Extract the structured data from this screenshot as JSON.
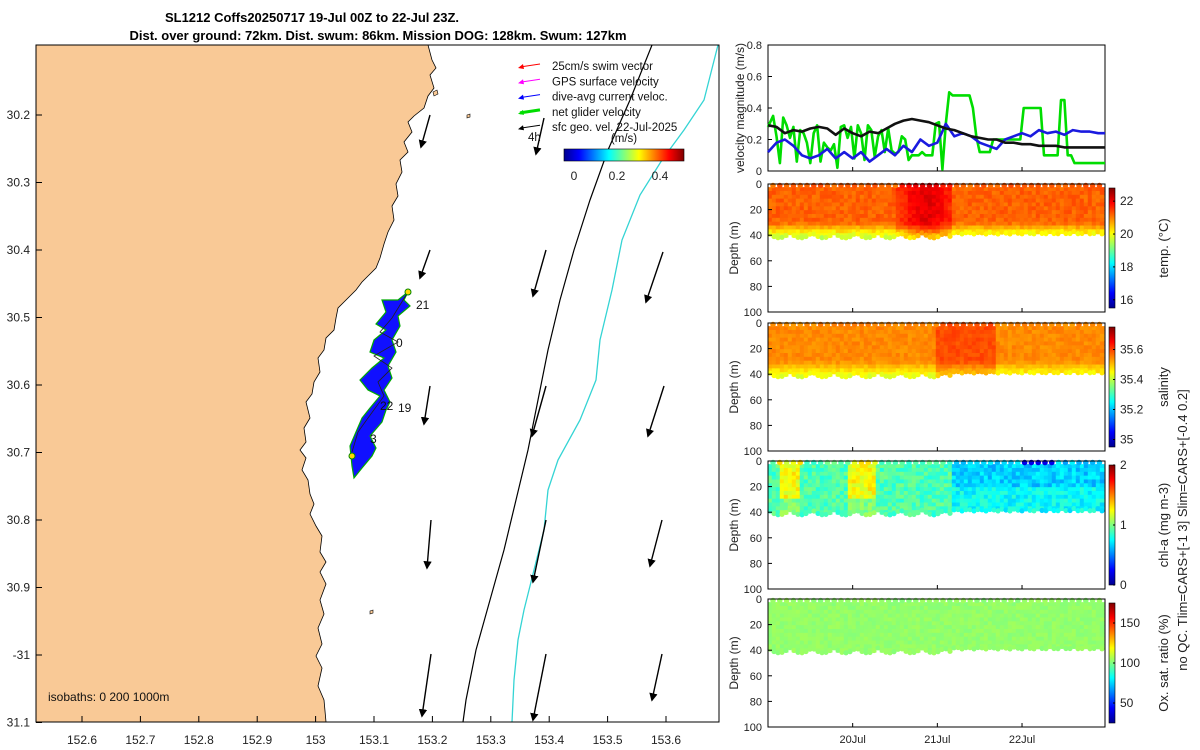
{
  "title": {
    "line1": "SL1212 Coffs20250717 19-Jul 00Z to 22-Jul 23Z.",
    "line2": "Dist. over ground: 72km. Dist. swum: 86km. Mission DOG: 128km. Swum: 127km"
  },
  "map": {
    "lon_ticks": [
      "152.6",
      "152.7",
      "152.8",
      "152.9",
      "153",
      "153.1",
      "153.2",
      "153.3",
      "153.4",
      "153.5",
      "153.6"
    ],
    "lat_ticks": [
      "30.2",
      "30.3",
      "30.4",
      "30.5",
      "30.6",
      "30.7",
      "30.8",
      "30.9",
      "-31",
      "31.1"
    ],
    "isobaths_label": "isobaths: 0   200   1000m",
    "track_labels": [
      "21",
      "0",
      "22",
      "19",
      "3"
    ],
    "legend": [
      {
        "label": "25cm/s swim vector",
        "color": "#ff0000"
      },
      {
        "label": "GPS surface velocity",
        "color": "#ff00ff"
      },
      {
        "label": "dive-avg current veloc.",
        "color": "#0000ff"
      },
      {
        "label": "net glider velocity",
        "color": "#00dd00"
      },
      {
        "label": "sfc geo. vel. 22-Jul-2025",
        "color": "#000000"
      }
    ],
    "legend_note": "4h",
    "colorbar_title": "(m/s)",
    "colorbar_ticks": [
      "0",
      "0.2",
      "0.4"
    ],
    "land_color": "#f9c996"
  },
  "chart_data": [
    {
      "type": "line",
      "title": "",
      "ylabel": "velocity magnitude (m/s)",
      "ylim": [
        0,
        0.8
      ],
      "yticks": [
        "0",
        "0.2",
        "0.4",
        "0.6",
        "0.8"
      ],
      "x_unit": "day of July 2025",
      "xlim": [
        19.0,
        22.98
      ],
      "series": [
        {
          "name": "net glider velocity",
          "color": "#00dd00",
          "x": [
            19.0,
            19.06,
            19.1,
            19.14,
            19.18,
            19.22,
            19.26,
            19.3,
            19.34,
            19.38,
            19.42,
            19.46,
            19.5,
            19.54,
            19.58,
            19.62,
            19.66,
            19.7,
            19.74,
            19.78,
            19.82,
            19.86,
            19.9,
            19.94,
            19.98,
            20.02,
            20.06,
            20.1,
            20.14,
            20.18,
            20.22,
            20.26,
            20.3,
            20.34,
            20.38,
            20.42,
            20.46,
            20.5,
            20.54,
            20.58,
            20.62,
            20.66,
            20.7,
            20.74,
            20.78,
            20.82,
            20.86,
            20.9,
            20.94,
            20.98,
            21.02,
            21.06,
            21.1,
            21.14,
            21.18,
            21.22,
            21.26,
            21.3,
            21.34,
            21.38,
            21.42,
            21.46,
            21.5,
            21.54,
            21.58,
            21.62,
            21.66,
            21.7,
            21.74,
            21.78,
            21.82,
            21.86,
            21.9,
            21.94,
            21.98,
            22.02,
            22.06,
            22.1,
            22.14,
            22.18,
            22.22,
            22.26,
            22.3,
            22.34,
            22.38,
            22.42,
            22.46,
            22.5,
            22.54,
            22.58,
            22.62,
            22.66,
            22.7,
            22.74,
            22.78,
            22.82,
            22.86,
            22.9,
            22.94,
            22.98
          ],
          "y": [
            0.28,
            0.35,
            0.22,
            0.05,
            0.34,
            0.29,
            0.21,
            0.28,
            0.06,
            0.26,
            0.24,
            0.18,
            0.05,
            0.24,
            0.29,
            0.06,
            0.18,
            0.15,
            0.13,
            0.17,
            0.02,
            0.28,
            0.29,
            0.21,
            0.28,
            0.08,
            0.29,
            0.24,
            0.07,
            0.29,
            0.26,
            0.09,
            0.22,
            0.26,
            0.12,
            0.27,
            0.13,
            0.11,
            0.12,
            0.22,
            0.2,
            0.07,
            0.1,
            0.1,
            0.1,
            0.12,
            0.1,
            0.1,
            0.1,
            0.3,
            0.31,
            0.01,
            0.3,
            0.5,
            0.48,
            0.48,
            0.48,
            0.48,
            0.48,
            0.48,
            0.4,
            0.22,
            0.12,
            0.12,
            0.12,
            0.12,
            0.2,
            0.2,
            0.2,
            0.2,
            0.2,
            0.2,
            0.2,
            0.2,
            0.2,
            0.4,
            0.4,
            0.4,
            0.4,
            0.4,
            0.4,
            0.1,
            0.1,
            0.1,
            0.1,
            0.1,
            0.45,
            0.45,
            0.1,
            0.1,
            0.05,
            0.05,
            0.05,
            0.05,
            0.05,
            0.05,
            0.05,
            0.05,
            0.05,
            0.05
          ]
        },
        {
          "name": "dive-avg current veloc.",
          "color": "#1a1adf",
          "x": [
            19.0,
            19.1,
            19.2,
            19.3,
            19.4,
            19.5,
            19.6,
            19.7,
            19.8,
            19.9,
            20.0,
            20.1,
            20.2,
            20.3,
            20.4,
            20.5,
            20.6,
            20.7,
            20.8,
            20.9,
            21.0,
            21.1,
            21.2,
            21.3,
            21.4,
            21.5,
            21.6,
            21.7,
            21.8,
            21.9,
            22.0,
            22.1,
            22.2,
            22.3,
            22.4,
            22.5,
            22.6,
            22.7,
            22.8,
            22.9,
            22.98
          ],
          "y": [
            0.12,
            0.18,
            0.2,
            0.16,
            0.1,
            0.08,
            0.1,
            0.14,
            0.08,
            0.12,
            0.08,
            0.12,
            0.06,
            0.1,
            0.14,
            0.1,
            0.16,
            0.12,
            0.2,
            0.16,
            0.18,
            0.3,
            0.22,
            0.24,
            0.22,
            0.18,
            0.16,
            0.14,
            0.2,
            0.22,
            0.24,
            0.22,
            0.26,
            0.24,
            0.25,
            0.23,
            0.26,
            0.25,
            0.25,
            0.24,
            0.24
          ]
        },
        {
          "name": "sfc geo. vel.",
          "color": "#111111",
          "x": [
            19.0,
            19.1,
            19.2,
            19.3,
            19.4,
            19.5,
            19.6,
            19.7,
            19.8,
            19.9,
            20.0,
            20.1,
            20.2,
            20.3,
            20.4,
            20.5,
            20.6,
            20.7,
            20.8,
            20.9,
            21.0,
            21.1,
            21.2,
            21.3,
            21.4,
            21.5,
            21.6,
            21.7,
            21.8,
            21.9,
            22.0,
            22.1,
            22.2,
            22.3,
            22.4,
            22.5,
            22.6,
            22.7,
            22.8,
            22.9,
            22.98
          ],
          "y": [
            0.29,
            0.28,
            0.24,
            0.26,
            0.25,
            0.27,
            0.28,
            0.27,
            0.23,
            0.27,
            0.24,
            0.22,
            0.25,
            0.24,
            0.27,
            0.3,
            0.32,
            0.33,
            0.32,
            0.31,
            0.29,
            0.27,
            0.26,
            0.24,
            0.22,
            0.21,
            0.2,
            0.2,
            0.18,
            0.18,
            0.17,
            0.17,
            0.16,
            0.16,
            0.16,
            0.15,
            0.15,
            0.15,
            0.15,
            0.15,
            0.15
          ]
        }
      ]
    },
    {
      "type": "heatmap",
      "name": "temperature section",
      "ylabel": "Depth (m)",
      "colorbar_label": "temp. (°C)",
      "ylim": [
        0,
        100
      ],
      "yticks": [
        "0",
        "20",
        "40",
        "60",
        "80",
        "100"
      ],
      "clim": [
        15.5,
        22.8
      ],
      "cticks": [
        "16",
        "18",
        "20",
        "22"
      ],
      "xticks": [
        "20Jul",
        "21Jul",
        "22Jul"
      ],
      "surface_value": 21.6,
      "bottom_depth_m": [
        38,
        42
      ]
    },
    {
      "type": "heatmap",
      "name": "salinity section",
      "ylabel": "Depth (m)",
      "colorbar_label": "salinity",
      "ylim": [
        0,
        100
      ],
      "yticks": [
        "0",
        "20",
        "40",
        "60",
        "80",
        "100"
      ],
      "clim": [
        34.95,
        35.75
      ],
      "cticks": [
        "35",
        "35.2",
        "35.4",
        "35.6"
      ],
      "xticks": [
        "20Jul",
        "21Jul",
        "22Jul"
      ],
      "surface_value": 35.55,
      "bottom_depth_m": [
        38,
        42
      ]
    },
    {
      "type": "heatmap",
      "name": "chlorophyll-a section",
      "ylabel": "Depth (m)",
      "colorbar_label": "chl-a (mg m-3)",
      "ylim": [
        0,
        100
      ],
      "yticks": [
        "0",
        "20",
        "40",
        "60",
        "80",
        "100"
      ],
      "clim": [
        0,
        2
      ],
      "cticks": [
        "0",
        "1",
        "2"
      ],
      "xticks": [
        "20Jul",
        "21Jul",
        "22Jul"
      ],
      "surface_value": 0.8,
      "bottom_depth_m": [
        38,
        42
      ]
    },
    {
      "type": "heatmap",
      "name": "oxygen saturation section",
      "ylabel": "Depth (m)",
      "colorbar_label": "Ox. sat. ratio (%)",
      "ylim": [
        0,
        100
      ],
      "yticks": [
        "0",
        "20",
        "40",
        "60",
        "80",
        "100"
      ],
      "clim": [
        25,
        175
      ],
      "cticks": [
        "50",
        "100",
        "150"
      ],
      "xticks": [
        "20Jul",
        "21Jul",
        "22Jul"
      ],
      "surface_value": 100,
      "bottom_depth_m": [
        38,
        42
      ]
    }
  ],
  "qc_note": "no QC. Tlim=CARS+[-1 3] Slim=CARS+[-0.4 0.2]"
}
